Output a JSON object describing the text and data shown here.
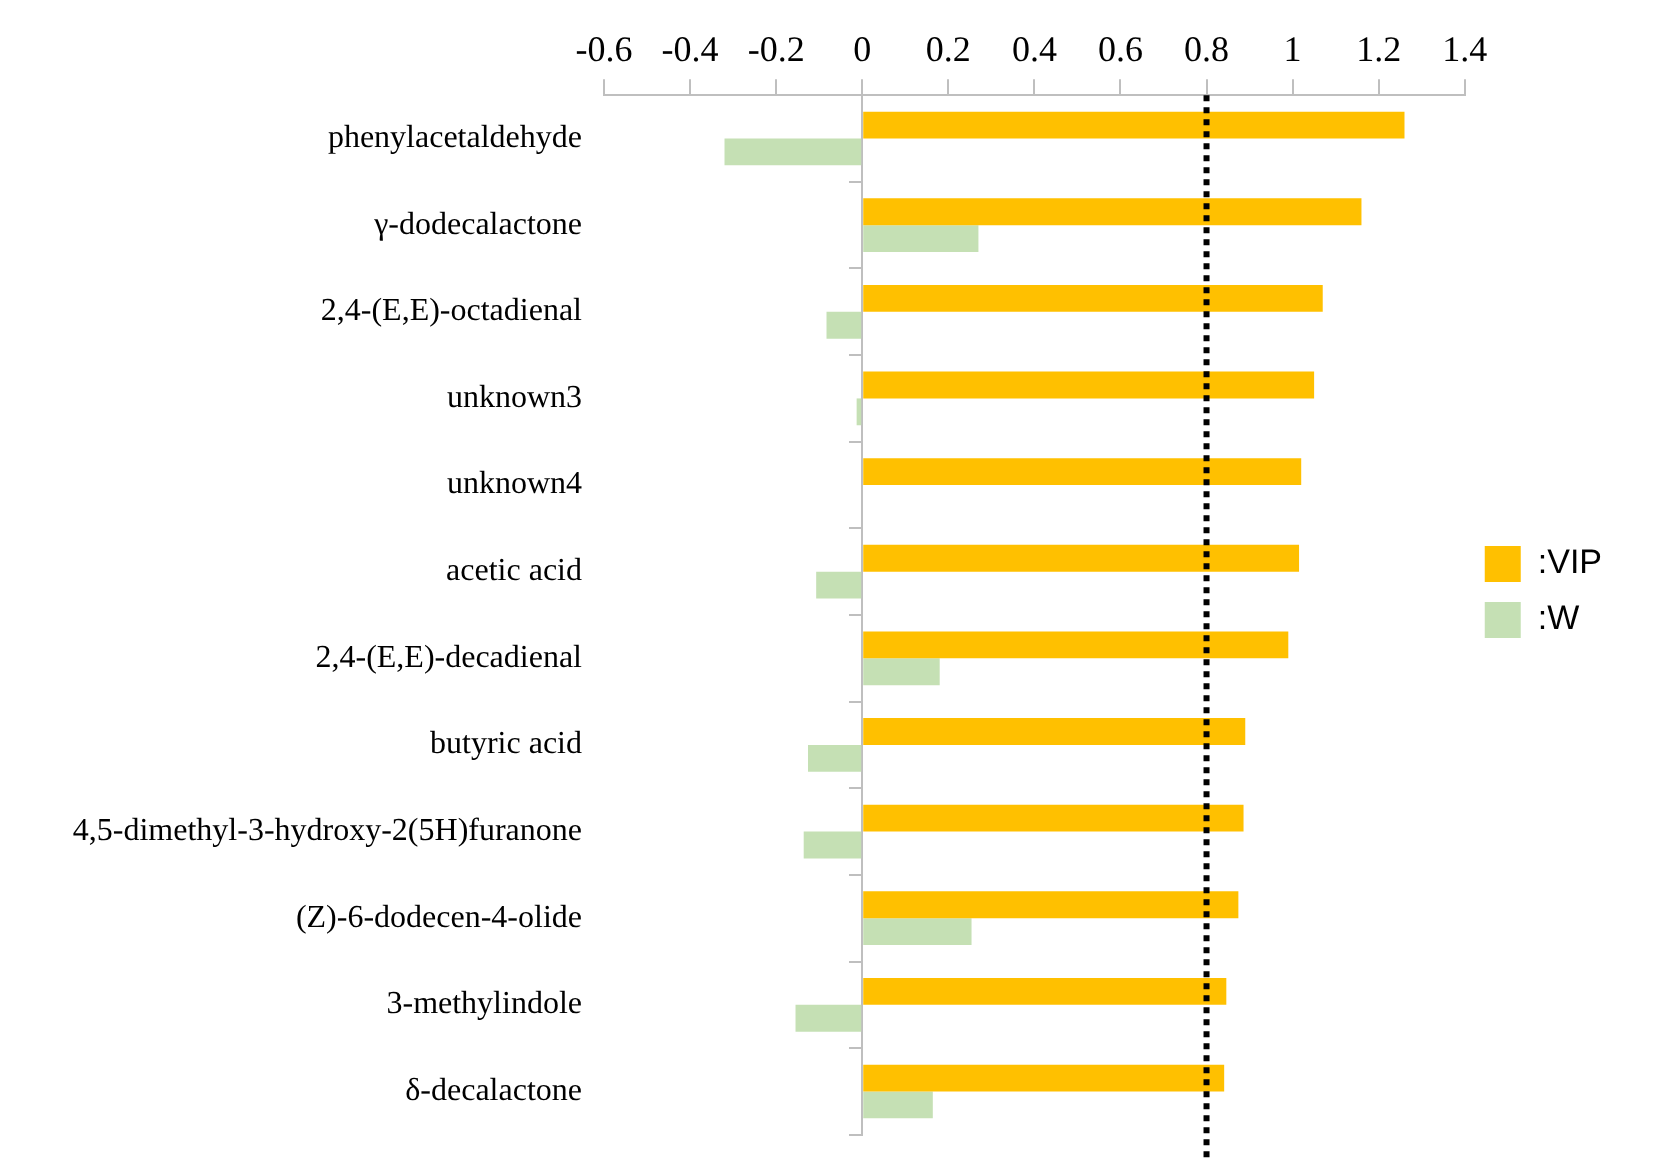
{
  "chart_data": {
    "type": "bar",
    "orientation": "horizontal",
    "categories": [
      "phenylacetaldehyde",
      "γ-dodecalactone",
      "2,4-(E,E)-octadienal",
      "unknown3",
      "unknown4",
      "acetic acid",
      "2,4-(E,E)-decadienal",
      "butyric acid",
      "4,5-dimethyl-3-hydroxy-2(5H)furanone",
      "(Z)-6-dodecen-4-olide",
      "3-methylindole",
      "δ-decalactone"
    ],
    "series": [
      {
        "name": ":VIP",
        "color": "#ffc000",
        "values": [
          1.26,
          1.16,
          1.07,
          1.05,
          1.02,
          1.015,
          0.99,
          0.89,
          0.886,
          0.874,
          0.846,
          0.841
        ]
      },
      {
        "name": ":W",
        "color": "#c5e0b4",
        "values": [
          -0.32,
          0.27,
          -0.083,
          -0.013,
          null,
          -0.107,
          0.18,
          -0.126,
          -0.136,
          0.254,
          -0.155,
          0.164
        ]
      }
    ],
    "xlim": [
      -0.6,
      1.4
    ],
    "xticks": [
      -0.6,
      -0.4,
      -0.2,
      0,
      0.2,
      0.4,
      0.6,
      0.8,
      1,
      1.2,
      1.4
    ],
    "ref_lines": [
      {
        "axis": "x",
        "value": 0.8,
        "color": "#000000",
        "line_style": "dotted"
      }
    ],
    "grid": false,
    "legend": "right"
  }
}
